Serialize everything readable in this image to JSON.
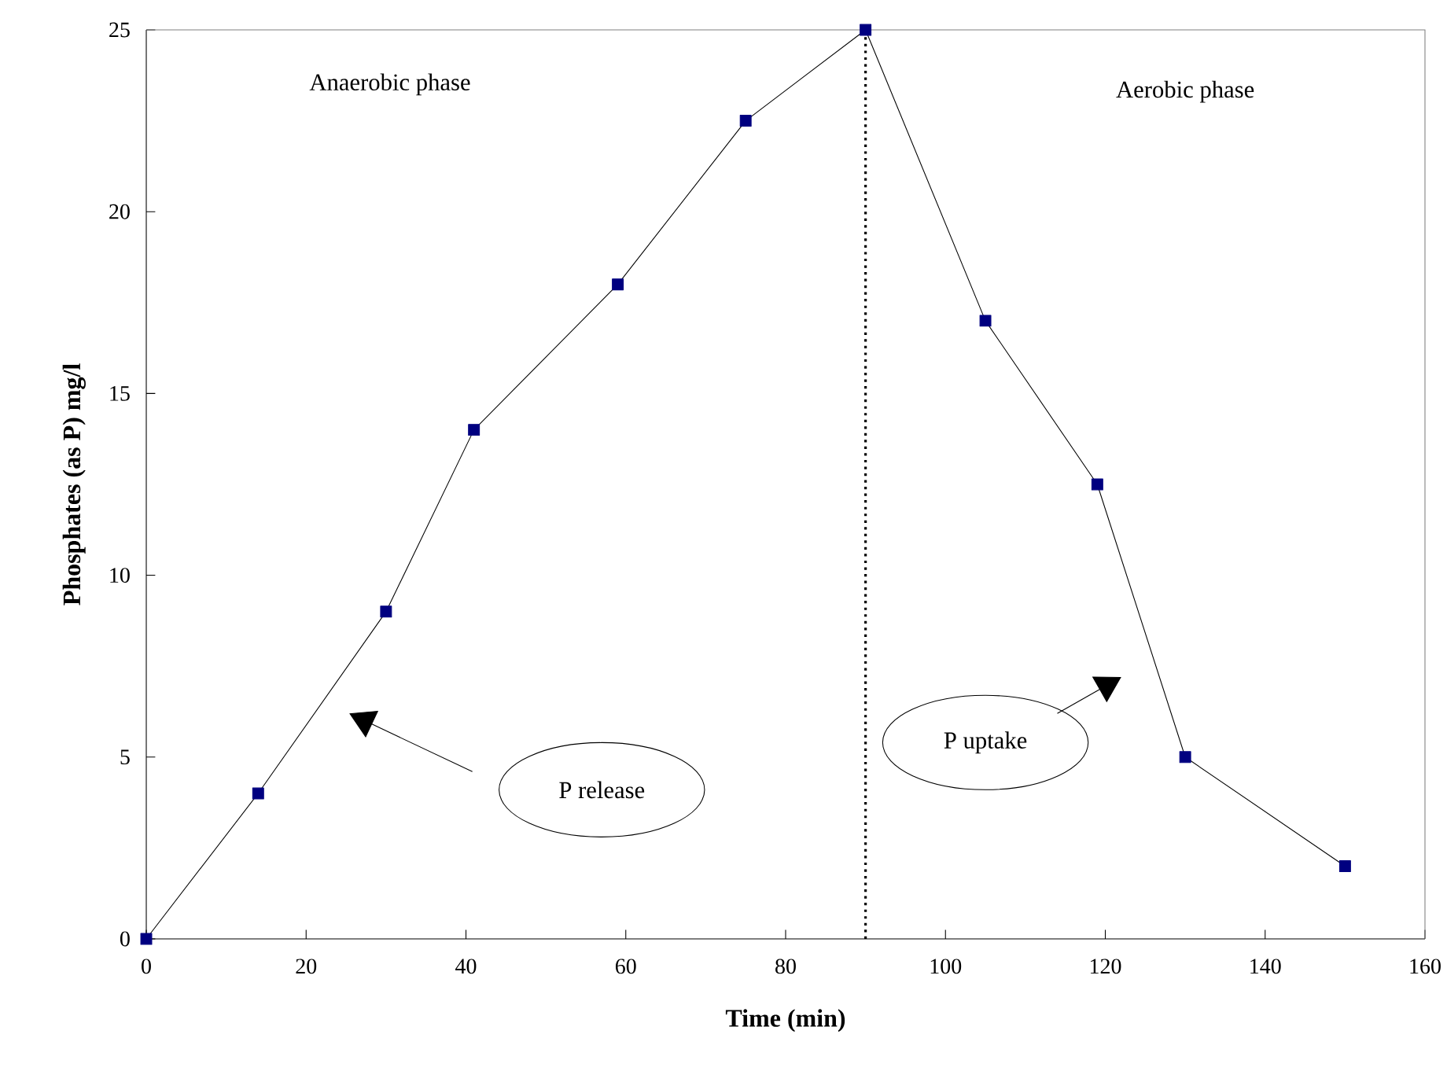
{
  "chart_data": {
    "type": "line",
    "xlabel": "Time (min)",
    "ylabel": "Phosphates (as P) mg/l",
    "xlim": [
      0,
      160
    ],
    "xticks": [
      0,
      20,
      40,
      60,
      80,
      100,
      120,
      140,
      160
    ],
    "ylim": [
      0,
      25
    ],
    "yticks": [
      0,
      5,
      10,
      15,
      20,
      25
    ],
    "grid": false,
    "marker": "square",
    "line_style": "solid",
    "series": [
      {
        "color": "#000080",
        "x": [
          0,
          14,
          30,
          41,
          59,
          75,
          90,
          105,
          119,
          130,
          150
        ],
        "values": [
          0,
          4,
          9,
          14,
          18,
          22.5,
          25,
          17,
          12.5,
          5,
          2
        ]
      }
    ],
    "ref_lines": [
      {
        "axis": "x",
        "value": 90,
        "line_style": "dotted",
        "color": "#000000"
      }
    ],
    "annotations": [
      "Anaerobic phase",
      "Aerobic phase",
      "P release",
      "P uptake"
    ]
  }
}
